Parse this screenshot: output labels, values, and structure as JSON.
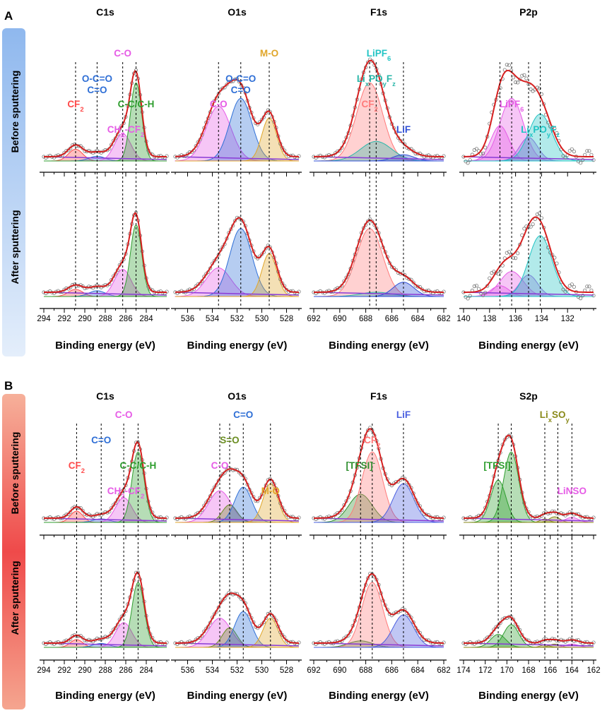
{
  "chart_data": {
    "type": "area",
    "panels": [
      {
        "label": "A",
        "band_labels": [
          "Before sputtering",
          "After sputtering"
        ],
        "band_color": "#aecbf0",
        "xlabel": "Binding energy (eV)",
        "subplots": [
          {
            "title": "C1s",
            "xlim": [
              294,
              282
            ],
            "ticks": [
              "294",
              "292",
              "290",
              "288",
              "286",
              "284"
            ],
            "components": [
              {
                "label": "CF₂",
                "label_parts": [
                  [
                    "CF",
                    ""
                  ],
                  [
                    "2",
                    "sub"
                  ]
                ],
                "color": "#ff4a4a",
                "center": 290.9,
                "width": 0.7,
                "height_before": 0.15,
                "height_after": 0.1
              },
              {
                "label": "O-C=O\nC=O",
                "label_parts": [
                  [
                    "O-C=O",
                    ""
                  ]
                ],
                "label_line2": "C=O",
                "color": "#2f6fd6",
                "center": 288.8,
                "width": 0.8,
                "height_before": 0.06,
                "height_after": 0.08
              },
              {
                "label": "C-O",
                "label_parts": [
                  [
                    "C-O",
                    ""
                  ]
                ],
                "color": "#e65ce6",
                "center": 286.3,
                "width": 0.8,
                "height_before": 0.35,
                "height_after": 0.38
              },
              {
                "label": "CH₂-CF₂",
                "label_parts": [
                  [
                    "CH",
                    ""
                  ],
                  [
                    "2",
                    "sub"
                  ],
                  [
                    "-CF",
                    ""
                  ],
                  [
                    "2",
                    "sub"
                  ]
                ],
                "color": "#e65ce6",
                "center": 286.0,
                "width": 0.0,
                "height_before": 0,
                "height_after": 0
              },
              {
                "label": "C-C/C-H",
                "label_parts": [
                  [
                    "C-C/C-H",
                    ""
                  ]
                ],
                "color": "#2f9e2f",
                "center": 285.0,
                "width": 0.55,
                "height_before": 1.0,
                "height_after": 1.0
              }
            ],
            "guides": [
              290.9,
              288.8,
              286.3,
              285.0
            ]
          },
          {
            "title": "O1s",
            "xlim": [
              537,
              527
            ],
            "ticks": [
              "536",
              "534",
              "532",
              "530",
              "528"
            ],
            "components": [
              {
                "label": "C-O",
                "label_parts": [
                  [
                    "C-O",
                    ""
                  ]
                ],
                "color": "#e65ce6",
                "center": 533.5,
                "width": 1.0,
                "height_before": 0.7,
                "height_after": 0.4
              },
              {
                "label": "O-C=O\nC=O",
                "label_parts": [
                  [
                    "O-C=O",
                    ""
                  ]
                ],
                "label_line2": "C=O",
                "color": "#2f6fd6",
                "center": 531.7,
                "width": 0.9,
                "height_before": 0.8,
                "height_after": 0.95
              },
              {
                "label": "M-O",
                "label_parts": [
                  [
                    "M-O",
                    ""
                  ]
                ],
                "color": "#e0a62a",
                "center": 529.4,
                "width": 0.6,
                "height_before": 0.55,
                "height_after": 0.6
              }
            ],
            "guides": [
              533.5,
              531.7,
              529.4
            ]
          },
          {
            "title": "F1s",
            "xlim": [
              692,
              682
            ],
            "ticks": [
              "692",
              "690",
              "688",
              "686",
              "684",
              "682"
            ],
            "components": [
              {
                "label": "CF₂",
                "label_parts": [
                  [
                    "CF",
                    ""
                  ],
                  [
                    "2",
                    "sub"
                  ]
                ],
                "color": "#ff7a7a",
                "center": 687.7,
                "width": 1.0,
                "height_before": 1.0,
                "height_after": 0.95
              },
              {
                "label": "LiₓPOᵧF_z",
                "label_parts": [
                  [
                    "Li",
                    ""
                  ],
                  [
                    "x",
                    "sub"
                  ],
                  [
                    "PO",
                    ""
                  ],
                  [
                    "y",
                    "sub"
                  ],
                  [
                    "F",
                    ""
                  ],
                  [
                    "z",
                    "sub"
                  ]
                ],
                "color": "#2ab7a9",
                "center": 687.2,
                "width": 1.2,
                "height_before": 0.25,
                "height_after": 0.06
              },
              {
                "label": "LiPF₆",
                "label_parts": [
                  [
                    "LiPF",
                    ""
                  ],
                  [
                    "6",
                    "sub"
                  ]
                ],
                "color": "#22c4c4",
                "center": 687.0,
                "width": 0.0,
                "height_before": 0,
                "height_after": 0
              },
              {
                "label": "LiF",
                "label_parts": [
                  [
                    "LiF",
                    ""
                  ]
                ],
                "color": "#2f4fd6",
                "center": 685.1,
                "width": 0.8,
                "height_before": 0.08,
                "height_after": 0.2
              }
            ],
            "guides": [
              687.7,
              687.2,
              685.1
            ]
          },
          {
            "title": "P2p",
            "xlim": [
              140,
              130
            ],
            "ticks": [
              "140",
              "138",
              "136",
              "134",
              "132"
            ],
            "components": [
              {
                "label": "LiPF₆",
                "label_parts": [
                  [
                    "LiPF",
                    ""
                  ],
                  [
                    "6",
                    "sub"
                  ]
                ],
                "color": "#e65ce6",
                "center": 136.3,
                "width": 0.9,
                "height_before": 0.8,
                "height_after": 0.35
              },
              {
                "label": "",
                "label_parts": [],
                "color": "#e65ce6",
                "center": 137.2,
                "width": 0.7,
                "height_before": 0.45,
                "height_after": 0.15
              },
              {
                "label": "",
                "label_parts": [],
                "color": "#a566e0",
                "center": 135.0,
                "width": 0.7,
                "height_before": 0.3,
                "height_after": 0.3
              },
              {
                "label": "LiₓPOᵧF_z",
                "label_parts": [
                  [
                    "Li",
                    ""
                  ],
                  [
                    "x",
                    "sub"
                  ],
                  [
                    "PO",
                    ""
                  ],
                  [
                    "y",
                    "sub"
                  ],
                  [
                    "F",
                    ""
                  ],
                  [
                    "z",
                    "sub"
                  ]
                ],
                "color": "#22c4c4",
                "center": 134.1,
                "width": 0.9,
                "height_before": 0.6,
                "height_after": 0.85
              }
            ],
            "guides": [
              137.2,
              136.3,
              135.0,
              134.1
            ],
            "noisy": true
          }
        ]
      },
      {
        "label": "B",
        "band_labels": [
          "Before sputtering",
          "After sputtering"
        ],
        "band_color": "#f26a6a",
        "xlabel": "Binding energy (eV)",
        "subplots": [
          {
            "title": "C1s",
            "xlim": [
              294,
              282
            ],
            "ticks": [
              "294",
              "292",
              "290",
              "288",
              "286",
              "284"
            ],
            "components": [
              {
                "label": "CF₂",
                "label_parts": [
                  [
                    "CF",
                    ""
                  ],
                  [
                    "2",
                    "sub"
                  ]
                ],
                "color": "#ff4a4a",
                "center": 290.8,
                "width": 0.6,
                "height_before": 0.16,
                "height_after": 0.12
              },
              {
                "label": "C=O",
                "label_parts": [
                  [
                    "C=O",
                    ""
                  ]
                ],
                "color": "#2f6fd6",
                "center": 288.4,
                "width": 0.8,
                "height_before": 0.05,
                "height_after": 0.06
              },
              {
                "label": "C-O",
                "label_parts": [
                  [
                    "C-O",
                    ""
                  ]
                ],
                "color": "#e65ce6",
                "center": 286.2,
                "width": 0.8,
                "height_before": 0.35,
                "height_after": 0.38
              },
              {
                "label": "CH₂-CF₂",
                "label_parts": [
                  [
                    "CH",
                    ""
                  ],
                  [
                    "2",
                    "sub"
                  ],
                  [
                    "-CF",
                    ""
                  ],
                  [
                    "2",
                    "sub"
                  ]
                ],
                "color": "#e65ce6",
                "center": 286.0,
                "width": 0.0,
                "height_before": 0,
                "height_after": 0
              },
              {
                "label": "C-C/C-H",
                "label_parts": [
                  [
                    "C-C/C-H",
                    ""
                  ]
                ],
                "color": "#2f9e2f",
                "center": 284.8,
                "width": 0.6,
                "height_before": 1.0,
                "height_after": 1.0
              }
            ],
            "guides": [
              290.8,
              288.4,
              286.2,
              284.8
            ]
          },
          {
            "title": "O1s",
            "xlim": [
              537,
              527
            ],
            "ticks": [
              "536",
              "534",
              "532",
              "530",
              "528"
            ],
            "components": [
              {
                "label": "C-O",
                "label_parts": [
                  [
                    "C-O",
                    ""
                  ]
                ],
                "color": "#e65ce6",
                "center": 533.4,
                "width": 0.9,
                "height_before": 0.45,
                "height_after": 0.45
              },
              {
                "label": "S=O",
                "label_parts": [
                  [
                    "S=O",
                    ""
                  ]
                ],
                "color": "#6b8e23",
                "center": 532.6,
                "width": 0.6,
                "height_before": 0.25,
                "height_after": 0.3
              },
              {
                "label": "C=O",
                "label_parts": [
                  [
                    "C=O",
                    ""
                  ]
                ],
                "color": "#2f6fd6",
                "center": 531.5,
                "width": 0.7,
                "height_before": 0.5,
                "height_after": 0.55
              },
              {
                "label": "M-O",
                "label_parts": [
                  [
                    "M-O",
                    ""
                  ]
                ],
                "color": "#e0a62a",
                "center": 529.3,
                "width": 0.6,
                "height_before": 0.55,
                "height_after": 0.45
              }
            ],
            "guides": [
              533.4,
              532.6,
              531.5,
              529.3
            ]
          },
          {
            "title": "F1s",
            "xlim": [
              692,
              682
            ],
            "ticks": [
              "692",
              "690",
              "688",
              "686",
              "684",
              "682"
            ],
            "components": [
              {
                "label": "[TFSI]⁻",
                "label_parts": [
                  [
                    "[TFSI]",
                    ""
                  ],
                  [
                    "-",
                    "sup"
                  ]
                ],
                "color": "#2f8f2f",
                "center": 688.4,
                "width": 0.9,
                "height_before": 0.4,
                "height_after": 0.1
              },
              {
                "label": "CF₂",
                "label_parts": [
                  [
                    "CF",
                    ""
                  ],
                  [
                    "2",
                    "sub"
                  ]
                ],
                "color": "#ff7a7a",
                "center": 687.5,
                "width": 0.8,
                "height_before": 1.0,
                "height_after": 1.0
              },
              {
                "label": "LiF",
                "label_parts": [
                  [
                    "LiF",
                    ""
                  ]
                ],
                "color": "#4a5fe0",
                "center": 685.1,
                "width": 0.8,
                "height_before": 0.55,
                "height_after": 0.5
              }
            ],
            "guides": [
              688.4,
              687.5,
              685.1
            ]
          },
          {
            "title": "S2p",
            "xlim": [
              174,
              162
            ],
            "ticks": [
              "174",
              "172",
              "170",
              "168",
              "166",
              "164",
              "162"
            ],
            "components": [
              {
                "label": "[TFSI]⁻",
                "label_parts": [
                  [
                    "[TFSI]",
                    ""
                  ],
                  [
                    "-",
                    "sup"
                  ]
                ],
                "color": "#2f9e2f",
                "center": 170.8,
                "width": 0.7,
                "height_before": 0.6,
                "height_after": 0.2
              },
              {
                "label": "",
                "label_parts": [],
                "color": "#2f9e2f",
                "center": 169.6,
                "width": 0.7,
                "height_before": 1.0,
                "height_after": 0.35
              },
              {
                "label": "LiₓSOᵧ",
                "label_parts": [
                  [
                    "Li",
                    ""
                  ],
                  [
                    "x",
                    "sub"
                  ],
                  [
                    "SO",
                    ""
                  ],
                  [
                    "y",
                    "sub"
                  ]
                ],
                "color": "#8a8a1a",
                "center": 165.6,
                "width": 0.5,
                "height_before": 0.08,
                "height_after": 0.05
              },
              {
                "label": "LiNSO",
                "label_parts": [
                  [
                    "LiNSO",
                    ""
                  ]
                ],
                "color": "#e65ce6",
                "center": 164.0,
                "width": 0.6,
                "height_before": 0.07,
                "height_after": 0.05
              }
            ],
            "guides": [
              170.8,
              169.6,
              166.5,
              165.3,
              164.0
            ],
            "extra_small": [
              {
                "center": 166.5,
                "height_before": 0.05,
                "height_after": 0.04,
                "color": "#8a8a1a"
              }
            ]
          }
        ]
      }
    ]
  }
}
